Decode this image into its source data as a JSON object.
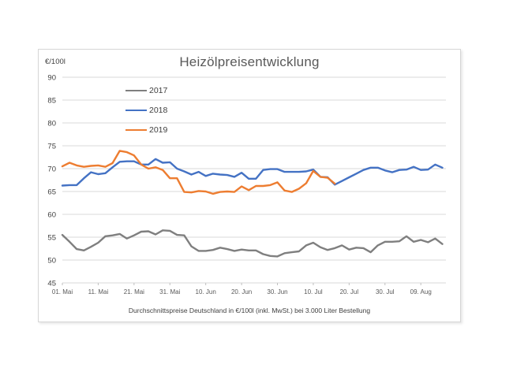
{
  "chart": {
    "title": "Heizölpreisentwicklung",
    "y_unit": "€/100l",
    "caption": "Durchschnittspreise Deutschland in €/100l (inkl. MwSt.) bei 3.000 Liter Bestellung"
  },
  "chart_data": {
    "type": "line",
    "title": "Heizölpreisentwicklung",
    "ylabel": "€/100l",
    "ylim": [
      45,
      90
    ],
    "y_ticks": [
      45,
      50,
      55,
      60,
      65,
      70,
      75,
      80,
      85,
      90
    ],
    "x_range_days": [
      0,
      107
    ],
    "x_tick_days": [
      0,
      10,
      20,
      30,
      40,
      50,
      60,
      70,
      80,
      90,
      100
    ],
    "x_tick_labels": [
      "01. Mai",
      "11. Mai",
      "21. Mai",
      "31. Mai",
      "10. Jun",
      "20. Jun",
      "30. Jun",
      "10. Jul",
      "20. Jul",
      "30. Jul",
      "09. Aug"
    ],
    "grid": "horizontal",
    "legend_position": "inside-top-left",
    "sample_interval_days": 2,
    "series": [
      {
        "name": "2017",
        "color": "#7F7F7F",
        "days": [
          0,
          2,
          4,
          6,
          8,
          10,
          12,
          14,
          16,
          18,
          20,
          22,
          24,
          26,
          28,
          30,
          32,
          34,
          36,
          38,
          40,
          42,
          44,
          46,
          48,
          50,
          52,
          54,
          56,
          58,
          60,
          62,
          64,
          66,
          68,
          70,
          72,
          74,
          76,
          78,
          80,
          82,
          84,
          86,
          88,
          90,
          92,
          94,
          96,
          98,
          100,
          102,
          104,
          106
        ],
        "values": [
          55.5,
          54.0,
          52.4,
          52.1,
          52.9,
          53.8,
          55.2,
          55.4,
          55.7,
          54.7,
          55.4,
          56.2,
          56.3,
          55.6,
          56.5,
          56.4,
          55.5,
          55.4,
          53.0,
          52.0,
          52.0,
          52.2,
          52.7,
          52.4,
          52.0,
          52.3,
          52.1,
          52.1,
          51.3,
          50.9,
          50.8,
          51.5,
          51.7,
          51.9,
          53.2,
          53.8,
          52.8,
          52.2,
          52.6,
          53.2,
          52.3,
          52.7,
          52.6,
          51.7,
          53.2,
          54.0,
          54.0,
          54.1,
          55.2,
          54.0,
          54.4,
          53.9,
          54.7,
          53.5
        ]
      },
      {
        "name": "2018",
        "color": "#4472C4",
        "days": [
          0,
          2,
          4,
          6,
          8,
          10,
          12,
          14,
          16,
          18,
          20,
          22,
          24,
          26,
          28,
          30,
          32,
          34,
          36,
          38,
          40,
          42,
          44,
          46,
          48,
          50,
          52,
          54,
          56,
          58,
          60,
          62,
          64,
          66,
          68,
          70,
          72,
          74,
          76,
          78,
          80,
          82,
          84,
          86,
          88,
          90,
          92,
          94,
          96,
          98,
          100,
          102,
          104,
          106
        ],
        "values": [
          66.3,
          66.4,
          66.4,
          67.9,
          69.2,
          68.8,
          69.0,
          70.3,
          71.5,
          71.6,
          71.6,
          70.9,
          70.9,
          72.1,
          71.3,
          71.4,
          70.0,
          69.4,
          68.7,
          69.3,
          68.4,
          68.9,
          68.7,
          68.6,
          68.2,
          69.1,
          67.8,
          67.8,
          69.7,
          69.9,
          69.9,
          69.3,
          69.3,
          69.3,
          69.4,
          69.8,
          68.2,
          68.1,
          66.5,
          67.3,
          68.1,
          68.9,
          69.7,
          70.2,
          70.2,
          69.6,
          69.2,
          69.7,
          69.8,
          70.4,
          69.7,
          69.8,
          70.9,
          70.2
        ]
      },
      {
        "name": "2019",
        "color": "#ED7D31",
        "days": [
          0,
          2,
          4,
          6,
          8,
          10,
          12,
          14,
          16,
          18,
          20,
          22,
          24,
          26,
          28,
          30,
          32,
          34,
          36,
          38,
          40,
          42,
          44,
          46,
          48,
          50,
          52,
          54,
          56,
          58,
          60,
          62,
          64,
          66,
          68,
          70,
          72,
          74,
          76
        ],
        "values": [
          70.5,
          71.3,
          70.7,
          70.4,
          70.6,
          70.7,
          70.4,
          71.2,
          73.9,
          73.6,
          72.9,
          70.9,
          70.0,
          70.3,
          69.7,
          67.9,
          67.9,
          64.9,
          64.8,
          65.1,
          65.0,
          64.5,
          64.9,
          65.0,
          64.9,
          66.1,
          65.3,
          66.2,
          66.2,
          66.4,
          67.0,
          65.2,
          64.9,
          65.6,
          66.8,
          69.5,
          68.2,
          68.0,
          66.7
        ]
      }
    ],
    "caption": "Durchschnittspreise Deutschland in €/100l (inkl. MwSt.) bei 3.000 Liter Bestellung"
  },
  "colors": {
    "gridline": "#d9d9d9",
    "axis_tick": "#bfbfbf",
    "title_text": "#595959",
    "axis_text": "#595959"
  }
}
